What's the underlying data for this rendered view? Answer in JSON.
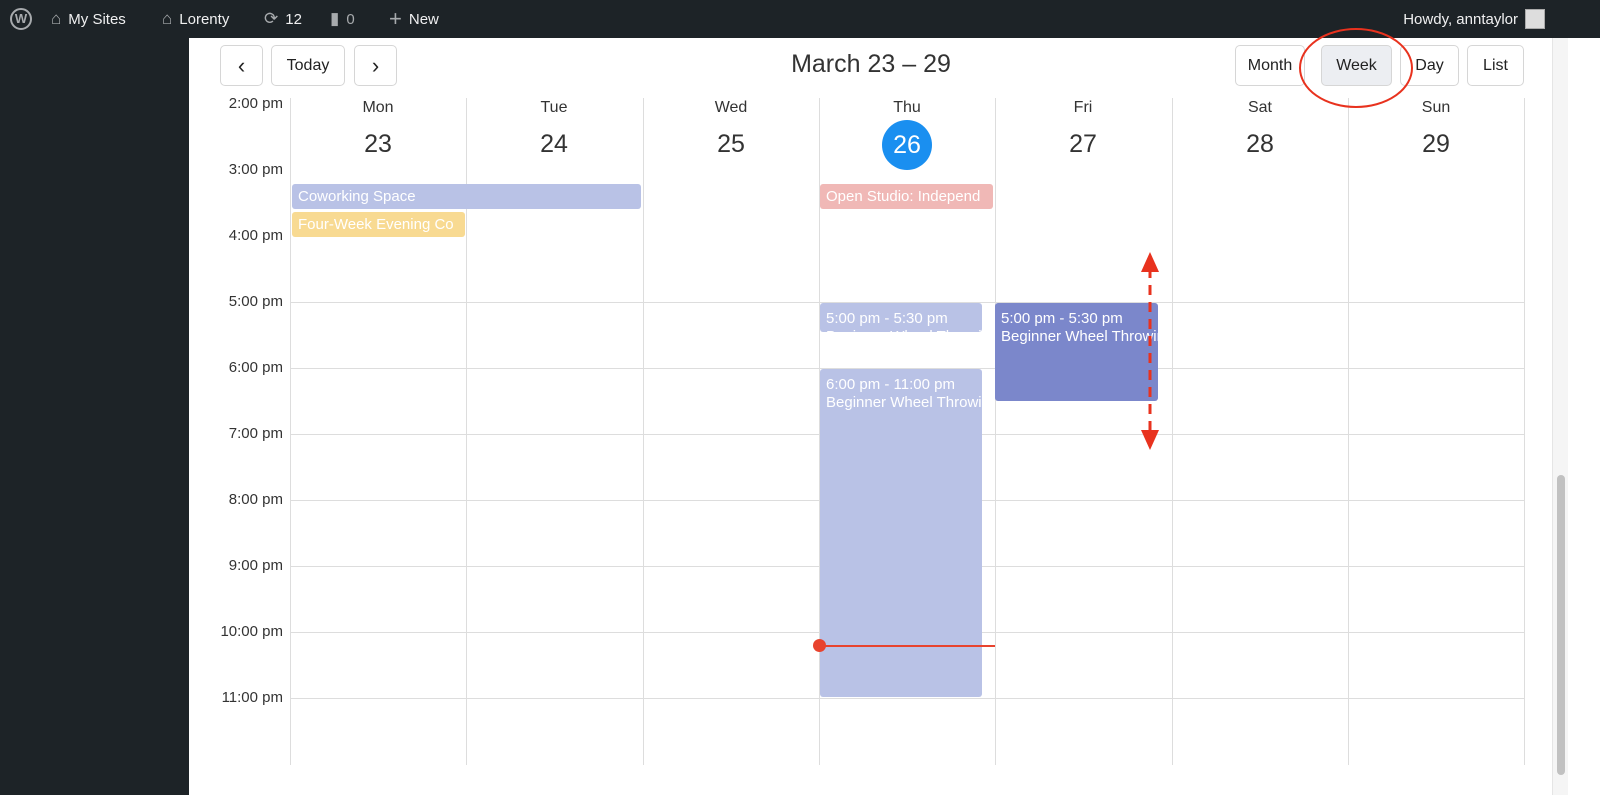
{
  "adminbar": {
    "my_sites": "My Sites",
    "site": "Lorenty",
    "updates": "12",
    "comments": "0",
    "new": "New",
    "howdy": "Howdy, anntaylor"
  },
  "toolbar": {
    "prev": "‹",
    "today": "Today",
    "next": "›",
    "title": "March 23 – 29",
    "views": [
      "Month",
      "Week",
      "Day",
      "List"
    ],
    "active_view": "Week"
  },
  "days": [
    {
      "name": "Mon",
      "num": "23"
    },
    {
      "name": "Tue",
      "num": "24"
    },
    {
      "name": "Wed",
      "num": "25"
    },
    {
      "name": "Thu",
      "num": "26",
      "today": true
    },
    {
      "name": "Fri",
      "num": "27"
    },
    {
      "name": "Sat",
      "num": "28"
    },
    {
      "name": "Sun",
      "num": "29"
    }
  ],
  "times": [
    "2:00 pm",
    "3:00 pm",
    "4:00 pm",
    "5:00 pm",
    "6:00 pm",
    "7:00 pm",
    "8:00 pm",
    "9:00 pm",
    "10:00 pm",
    "11:00 pm"
  ],
  "events": [
    {
      "title": "Coworking Space",
      "color": "#b9c2e6"
    },
    {
      "title": "Four-Week Evening Co",
      "color": "#f8da92"
    },
    {
      "title": "Open Studio: Independ",
      "color": "#f0b8b6"
    },
    {
      "time": "5:00 pm - 5:30 pm",
      "title": "Beginner Wheel Throwing",
      "color": "#b9c2e6"
    },
    {
      "time": "6:00 pm - 11:00 pm",
      "title": "Beginner Wheel Throwing",
      "color": "#b9c2e6"
    },
    {
      "time": "5:00 pm - 5:30 pm",
      "title": "Beginner Wheel Throwing",
      "color": "#7b87cb"
    }
  ],
  "colors": {
    "today": "#1a8ff0",
    "now_indicator": "#e8432e",
    "annotation": "#e8321e"
  }
}
